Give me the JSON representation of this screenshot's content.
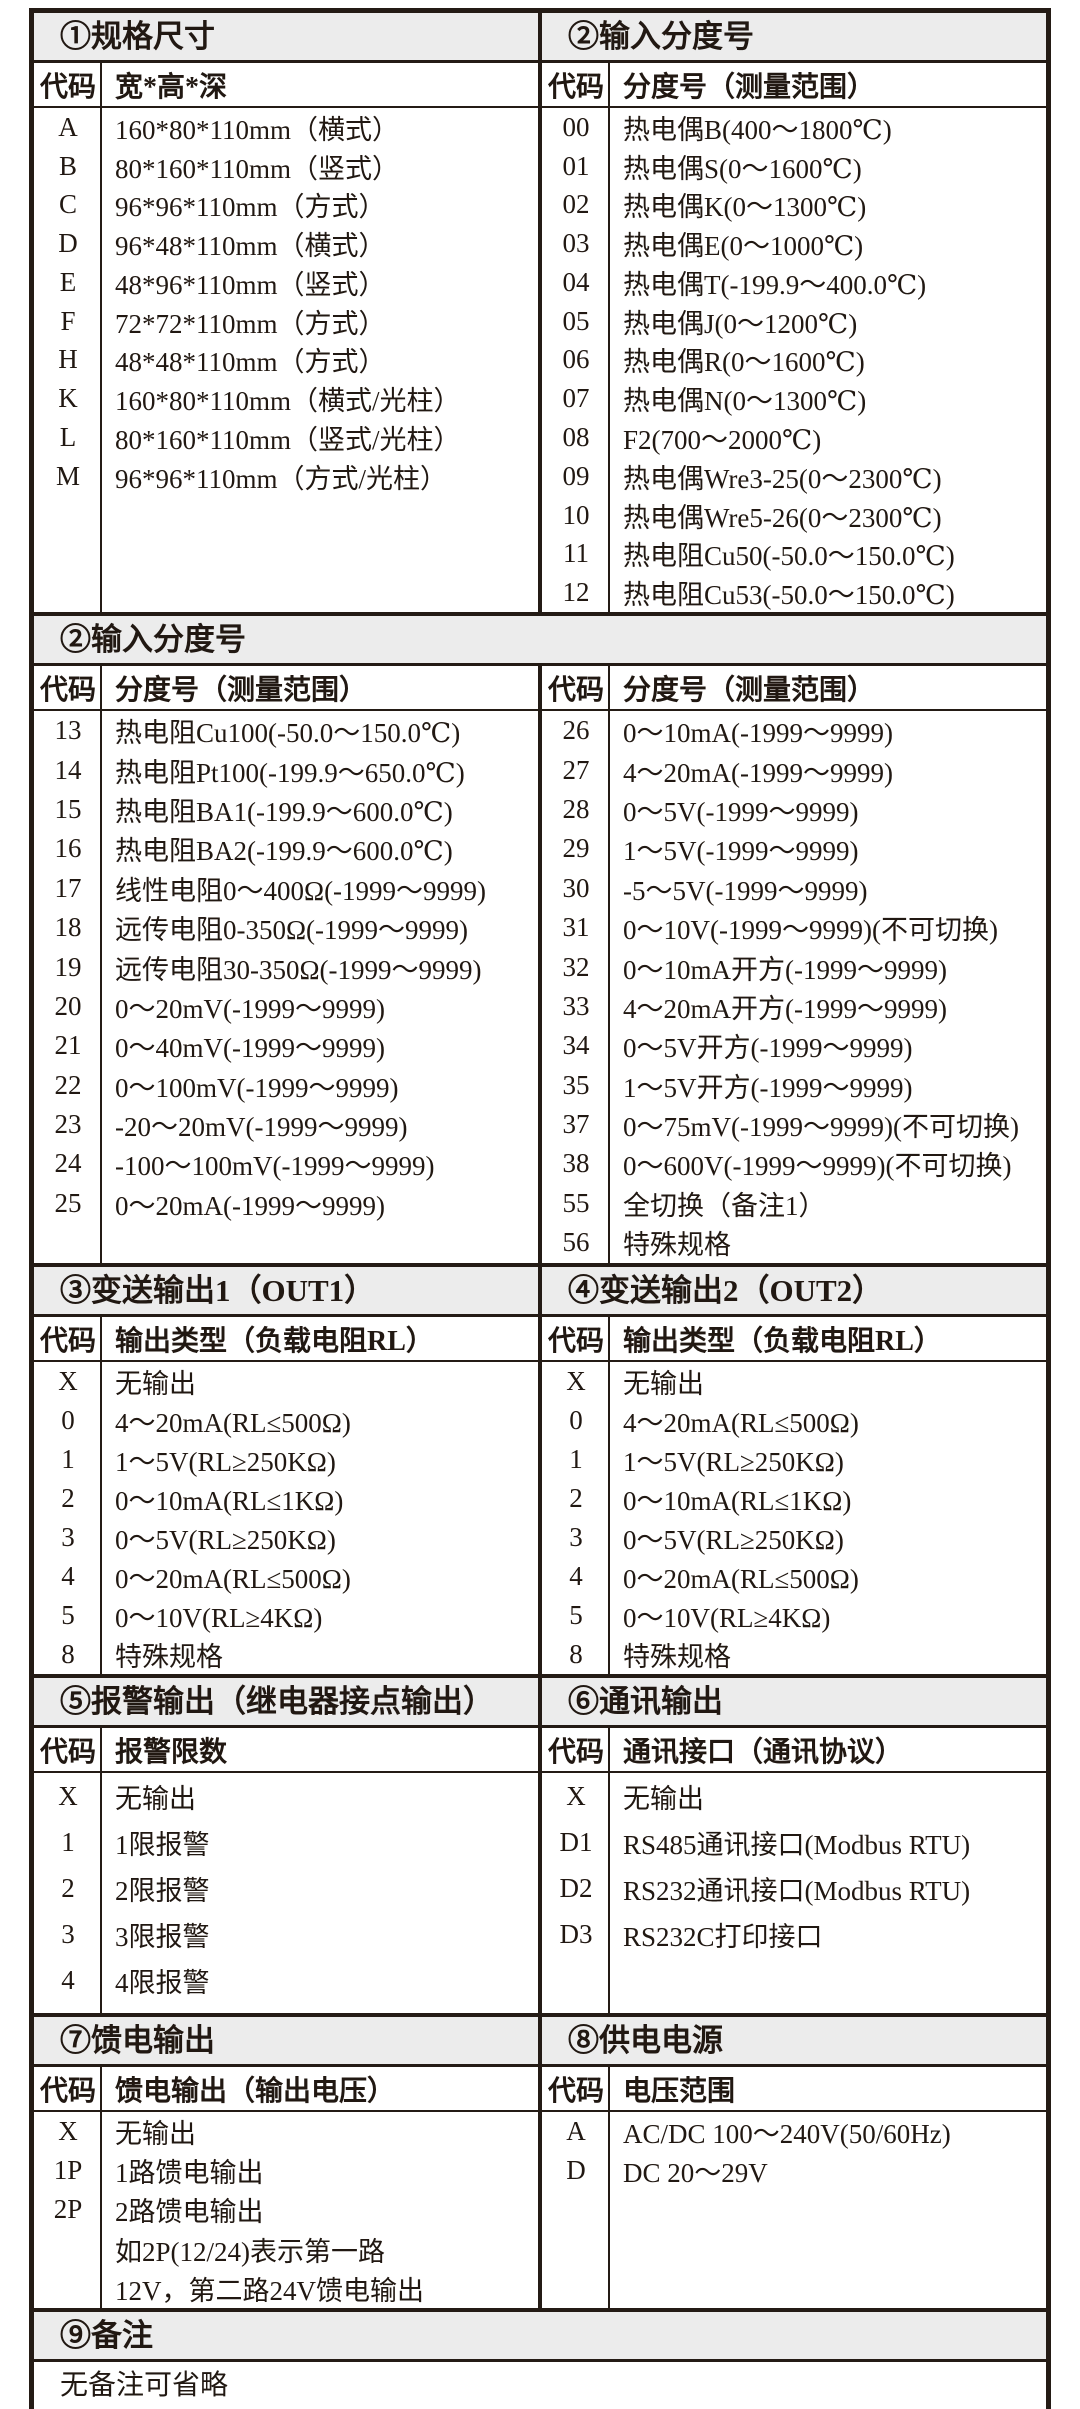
{
  "styles": {
    "band_bg": "#ececec",
    "border_color": "#241b15",
    "text_color": "#211812"
  },
  "sections": {
    "spec": {
      "title": "①规格尺寸",
      "code_header": "代码",
      "desc_header": "宽*高*深",
      "rows": [
        {
          "code": "A",
          "desc": "160*80*110mm（横式）"
        },
        {
          "code": "B",
          "desc": "80*160*110mm（竖式）"
        },
        {
          "code": "C",
          "desc": "96*96*110mm（方式）"
        },
        {
          "code": "D",
          "desc": "96*48*110mm（横式）"
        },
        {
          "code": "E",
          "desc": "48*96*110mm（竖式）"
        },
        {
          "code": "F",
          "desc": "72*72*110mm（方式）"
        },
        {
          "code": "H",
          "desc": "48*48*110mm（方式）"
        },
        {
          "code": "K",
          "desc": "160*80*110mm（横式/光柱）"
        },
        {
          "code": "L",
          "desc": "80*160*110mm（竖式/光柱）"
        },
        {
          "code": "M",
          "desc": "96*96*110mm（方式/光柱）"
        }
      ]
    },
    "input_top": {
      "title": "②输入分度号",
      "code_header": "代码",
      "desc_header": "分度号（测量范围）",
      "rows": [
        {
          "code": "00",
          "desc": "热电偶B(400～1800℃)"
        },
        {
          "code": "01",
          "desc": "热电偶S(0～1600℃)"
        },
        {
          "code": "02",
          "desc": "热电偶K(0～1300℃)"
        },
        {
          "code": "03",
          "desc": "热电偶E(0～1000℃)"
        },
        {
          "code": "04",
          "desc": "热电偶T(-199.9～400.0℃)"
        },
        {
          "code": "05",
          "desc": "热电偶J(0～1200℃)"
        },
        {
          "code": "06",
          "desc": "热电偶R(0～1600℃)"
        },
        {
          "code": "07",
          "desc": "热电偶N(0～1300℃)"
        },
        {
          "code": "08",
          "desc": "F2(700～2000℃)"
        },
        {
          "code": "09",
          "desc": "热电偶Wre3-25(0～2300℃)"
        },
        {
          "code": "10",
          "desc": "热电偶Wre5-26(0～2300℃)"
        },
        {
          "code": "11",
          "desc": "热电阻Cu50(-50.0～150.0℃)"
        },
        {
          "code": "12",
          "desc": "热电阻Cu53(-50.0～150.0℃)"
        }
      ]
    },
    "input_cont": {
      "title": "②输入分度号",
      "left": {
        "code_header": "代码",
        "desc_header": "分度号（测量范围）",
        "rows": [
          {
            "code": "13",
            "desc": "热电阻Cu100(-50.0～150.0℃)"
          },
          {
            "code": "14",
            "desc": "热电阻Pt100(-199.9～650.0℃)"
          },
          {
            "code": "15",
            "desc": "热电阻BA1(-199.9～600.0℃)"
          },
          {
            "code": "16",
            "desc": "热电阻BA2(-199.9～600.0℃)"
          },
          {
            "code": "17",
            "desc": "线性电阻0～400Ω(-1999～9999)"
          },
          {
            "code": "18",
            "desc": "远传电阻0-350Ω(-1999～9999)"
          },
          {
            "code": "19",
            "desc": "远传电阻30-350Ω(-1999～9999)"
          },
          {
            "code": "20",
            "desc": "0～20mV(-1999～9999)"
          },
          {
            "code": "21",
            "desc": "0～40mV(-1999～9999)"
          },
          {
            "code": "22",
            "desc": "0～100mV(-1999～9999)"
          },
          {
            "code": "23",
            "desc": "-20～20mV(-1999～9999)"
          },
          {
            "code": "24",
            "desc": "-100～100mV(-1999～9999)"
          },
          {
            "code": "25",
            "desc": "0～20mA(-1999～9999)"
          }
        ]
      },
      "right": {
        "code_header": "代码",
        "desc_header": "分度号（测量范围）",
        "rows": [
          {
            "code": "26",
            "desc": "0～10mA(-1999～9999)"
          },
          {
            "code": "27",
            "desc": "4～20mA(-1999～9999)"
          },
          {
            "code": "28",
            "desc": "0～5V(-1999～9999)"
          },
          {
            "code": "29",
            "desc": "1～5V(-1999～9999)"
          },
          {
            "code": "30",
            "desc": "-5～5V(-1999～9999)"
          },
          {
            "code": "31",
            "desc": "0～10V(-1999～9999)(不可切换)"
          },
          {
            "code": "32",
            "desc": "0～10mA开方(-1999～9999)"
          },
          {
            "code": "33",
            "desc": "4～20mA开方(-1999～9999)"
          },
          {
            "code": "34",
            "desc": "0～5V开方(-1999～9999)"
          },
          {
            "code": "35",
            "desc": "1～5V开方(-1999～9999)"
          },
          {
            "code": "37",
            "desc": "0～75mV(-1999～9999)(不可切换)"
          },
          {
            "code": "38",
            "desc": "0～600V(-1999～9999)(不可切换)"
          },
          {
            "code": "55",
            "desc": "全切换（备注1）"
          },
          {
            "code": "56",
            "desc": "特殊规格"
          }
        ]
      }
    },
    "out1": {
      "title": "③变送输出1（OUT1）",
      "code_header": "代码",
      "desc_header": "输出类型（负载电阻RL）",
      "rows": [
        {
          "code": "X",
          "desc": "无输出"
        },
        {
          "code": "0",
          "desc": "4～20mA(RL≤500Ω)"
        },
        {
          "code": "1",
          "desc": "1～5V(RL≥250KΩ)"
        },
        {
          "code": "2",
          "desc": "0～10mA(RL≤1KΩ)"
        },
        {
          "code": "3",
          "desc": "0～5V(RL≥250KΩ)"
        },
        {
          "code": "4",
          "desc": "0～20mA(RL≤500Ω)"
        },
        {
          "code": "5",
          "desc": "0～10V(RL≥4KΩ)"
        },
        {
          "code": "8",
          "desc": "特殊规格"
        }
      ]
    },
    "out2": {
      "title": "④变送输出2（OUT2）",
      "code_header": "代码",
      "desc_header": "输出类型（负载电阻RL）",
      "rows": [
        {
          "code": "X",
          "desc": "无输出"
        },
        {
          "code": "0",
          "desc": "4～20mA(RL≤500Ω)"
        },
        {
          "code": "1",
          "desc": "1～5V(RL≥250KΩ)"
        },
        {
          "code": "2",
          "desc": "0～10mA(RL≤1KΩ)"
        },
        {
          "code": "3",
          "desc": "0～5V(RL≥250KΩ)"
        },
        {
          "code": "4",
          "desc": "0～20mA(RL≤500Ω)"
        },
        {
          "code": "5",
          "desc": "0～10V(RL≥4KΩ)"
        },
        {
          "code": "8",
          "desc": "特殊规格"
        }
      ]
    },
    "alarm": {
      "title": "⑤报警输出（继电器接点输出）",
      "code_header": "代码",
      "desc_header": "报警限数",
      "rows": [
        {
          "code": "X",
          "desc": "无输出"
        },
        {
          "code": "1",
          "desc": "1限报警"
        },
        {
          "code": "2",
          "desc": "2限报警"
        },
        {
          "code": "3",
          "desc": "3限报警"
        },
        {
          "code": "4",
          "desc": "4限报警"
        }
      ]
    },
    "comm": {
      "title": "⑥通讯输出",
      "code_header": "代码",
      "desc_header": "通讯接口（通讯协议）",
      "rows": [
        {
          "code": "X",
          "desc": "无输出"
        },
        {
          "code": "D1",
          "desc": "RS485通讯接口(Modbus RTU)"
        },
        {
          "code": "D2",
          "desc": "RS232通讯接口(Modbus RTU)"
        },
        {
          "code": "D3",
          "desc": "RS232C打印接口"
        }
      ]
    },
    "feed": {
      "title": "⑦馈电输出",
      "code_header": "代码",
      "desc_header": "馈电输出（输出电压）",
      "rows": [
        {
          "code": "X",
          "desc": "无输出"
        },
        {
          "code": "1P",
          "desc": "1路馈电输出"
        },
        {
          "code": "2P",
          "desc": "2路馈电输出"
        },
        {
          "code": "",
          "desc": "如2P(12/24)表示第一路"
        },
        {
          "code": "",
          "desc": "12V，第二路24V馈电输出"
        }
      ]
    },
    "power": {
      "title": "⑧供电电源",
      "code_header": "代码",
      "desc_header": "电压范围",
      "rows": [
        {
          "code": "A",
          "desc": "AC/DC 100～240V(50/60Hz)"
        },
        {
          "code": "D",
          "desc": "DC 20～29V"
        }
      ]
    },
    "note": {
      "title": "⑨备注",
      "content": "无备注可省略"
    }
  }
}
